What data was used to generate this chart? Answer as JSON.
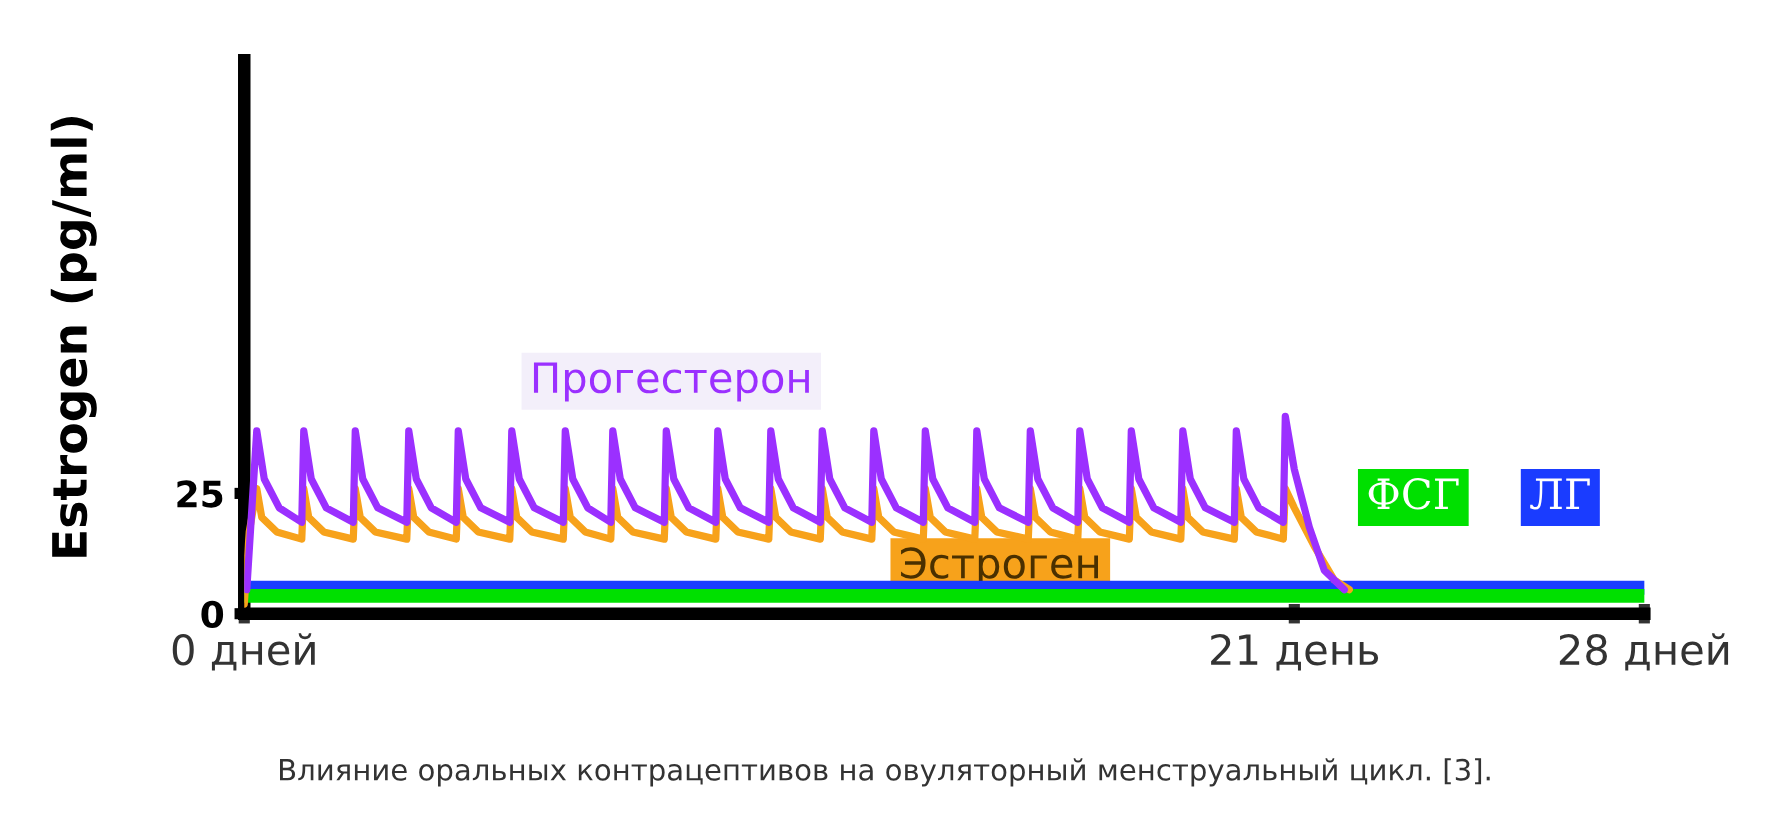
{
  "chart_data": {
    "type": "line",
    "ylabel": "Estrogen (pg/ml)",
    "xlim": [
      0,
      28
    ],
    "xticks": [
      {
        "value": 0,
        "label": "0 дней"
      },
      {
        "value": 21,
        "label": "21 день"
      },
      {
        "value": 28,
        "label": "28 дней"
      }
    ],
    "ylim": [
      0,
      115
    ],
    "yticks": [
      0,
      25
    ],
    "grid": false,
    "legend": false,
    "marker": "none",
    "line_style": "solid",
    "annotations": [
      "Влияние оральных контрацептивов на овуляторный менструальный цикл. [3]."
    ],
    "series": [
      {
        "name": "Прогестерон",
        "color": "#9b30ff",
        "x": [
          0.05,
          0.25,
          0.4,
          0.7,
          1.15,
          1.19,
          1.34,
          1.64,
          2.18,
          2.22,
          2.37,
          2.67,
          3.25,
          3.29,
          3.44,
          3.74,
          4.24,
          4.28,
          4.43,
          4.73,
          5.31,
          5.35,
          5.5,
          5.8,
          6.38,
          6.42,
          6.57,
          6.87,
          7.33,
          7.37,
          7.52,
          7.82,
          8.4,
          8.44,
          8.59,
          8.89,
          9.43,
          9.47,
          9.62,
          9.92,
          10.49,
          10.53,
          10.68,
          10.98,
          11.52,
          11.56,
          11.71,
          12.01,
          12.55,
          12.59,
          12.74,
          13.04,
          13.58,
          13.62,
          13.77,
          14.07,
          14.61,
          14.65,
          14.8,
          15.1,
          15.68,
          15.72,
          15.87,
          16.17,
          16.67,
          16.71,
          16.86,
          17.16,
          17.7,
          17.74,
          17.89,
          18.19,
          18.73,
          18.77,
          18.92,
          19.22,
          19.8,
          19.84,
          19.99,
          20.29,
          20.78,
          20.82,
          21.0,
          21.3,
          21.6,
          22.0
        ],
        "values": [
          5,
          38,
          28,
          22,
          19,
          38,
          28,
          22,
          19,
          38,
          28,
          22,
          19,
          38,
          28,
          22,
          19,
          38,
          28,
          22,
          19,
          38,
          28,
          22,
          19,
          38,
          28,
          22,
          19,
          38,
          28,
          22,
          19,
          38,
          28,
          22,
          19,
          38,
          28,
          22,
          19,
          38,
          28,
          22,
          19,
          38,
          28,
          22,
          19,
          38,
          28,
          22,
          19,
          38,
          28,
          22,
          19,
          38,
          28,
          22,
          19,
          38,
          28,
          22,
          19,
          38,
          28,
          22,
          19,
          38,
          28,
          22,
          19,
          38,
          28,
          22,
          19,
          38,
          28,
          22,
          19,
          41,
          30,
          18,
          9,
          5
        ]
      },
      {
        "name": "Эстроген",
        "color": "#f7a21b",
        "x": [
          0.0,
          0.1,
          0.25,
          0.35,
          0.65,
          1.15,
          1.19,
          1.29,
          1.59,
          2.18,
          2.22,
          2.32,
          2.62,
          3.25,
          3.29,
          3.39,
          3.69,
          4.24,
          4.28,
          4.38,
          4.68,
          5.31,
          5.35,
          5.45,
          5.75,
          6.38,
          6.42,
          6.52,
          6.82,
          7.33,
          7.37,
          7.47,
          7.77,
          8.4,
          8.44,
          8.54,
          8.84,
          9.43,
          9.47,
          9.57,
          9.87,
          10.49,
          10.53,
          10.63,
          10.93,
          11.52,
          11.56,
          11.66,
          11.96,
          12.55,
          12.59,
          12.69,
          12.99,
          13.58,
          13.62,
          13.72,
          14.02,
          14.61,
          14.65,
          14.75,
          15.05,
          15.68,
          15.72,
          15.82,
          16.12,
          16.67,
          16.71,
          16.81,
          17.11,
          17.7,
          17.74,
          17.84,
          18.14,
          18.73,
          18.77,
          18.87,
          19.17,
          19.8,
          19.84,
          19.94,
          20.24,
          20.78,
          20.82,
          21.0,
          21.4,
          21.8,
          22.1
        ],
        "values": [
          2,
          17,
          26,
          20,
          17,
          15.5,
          26,
          20,
          17,
          15.5,
          26,
          20,
          17,
          15.5,
          26,
          20,
          17,
          15.5,
          26,
          20,
          17,
          15.5,
          26,
          20,
          17,
          15.5,
          26,
          20,
          17,
          15.5,
          26,
          20,
          17,
          15.5,
          26,
          20,
          17,
          15.5,
          26,
          20,
          17,
          15.5,
          26,
          20,
          17,
          15.5,
          26,
          20,
          17,
          15.5,
          26,
          20,
          17,
          15.5,
          26,
          20,
          17,
          15.5,
          26,
          20,
          17,
          15.5,
          26,
          20,
          17,
          15.5,
          26,
          20,
          17,
          15.5,
          26,
          20,
          17,
          15.5,
          26,
          20,
          17,
          15.5,
          26,
          20,
          17,
          15.5,
          26,
          22,
          14,
          7,
          5
        ]
      },
      {
        "name": "ФСГ",
        "color": "#00e000",
        "x": [
          0,
          28
        ],
        "values": [
          3.7,
          3.7
        ]
      },
      {
        "name": "ЛГ",
        "color": "#1a3cff",
        "x": [
          0,
          28
        ],
        "values": [
          5.4,
          5.4
        ]
      }
    ]
  }
}
